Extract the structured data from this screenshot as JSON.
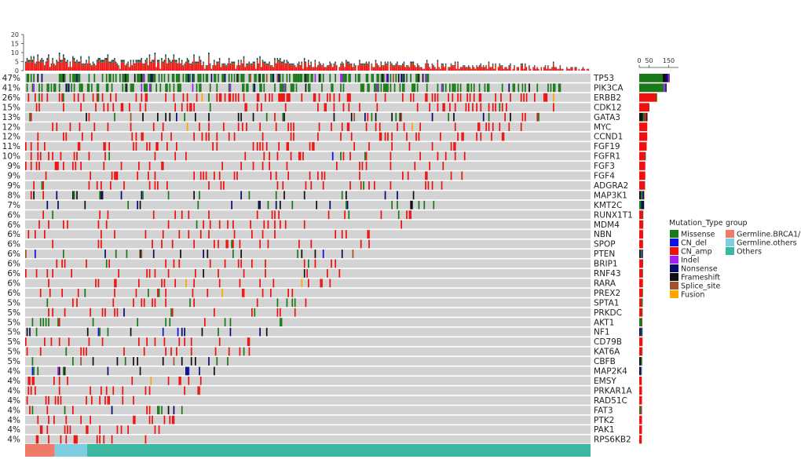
{
  "chart_data": {
    "type": "heatmap",
    "title": "",
    "top_axis_ticks": [
      0,
      5,
      10,
      15,
      20
    ],
    "right_axis_ticks": [
      0,
      50,
      150
    ],
    "right_axis_max": 200,
    "genes": [
      {
        "name": "TP53",
        "pct": "47%",
        "freq": 0.47,
        "counts": {
          "Missense": 120,
          "Frameshift": 14,
          "Nonsense": 12,
          "Indel": 6,
          "Splice_site": 4
        }
      },
      {
        "name": "PIK3CA",
        "pct": "41%",
        "freq": 0.41,
        "counts": {
          "Missense": 125,
          "Indel": 8,
          "Nonsense": 4,
          "Frameshift": 3
        }
      },
      {
        "name": "ERBB2",
        "pct": "26%",
        "freq": 0.26,
        "counts": {
          "CN_amp": 86,
          "Missense": 4,
          "Fusion": 2
        }
      },
      {
        "name": "CDK12",
        "pct": "15%",
        "freq": 0.15,
        "counts": {
          "CN_amp": 50,
          "Missense": 2
        }
      },
      {
        "name": "GATA3",
        "pct": "13%",
        "freq": 0.13,
        "counts": {
          "Frameshift": 18,
          "Missense": 10,
          "CN_amp": 8,
          "Nonsense": 4,
          "Splice_site": 3
        }
      },
      {
        "name": "MYC",
        "pct": "12%",
        "freq": 0.12,
        "counts": {
          "CN_amp": 40,
          "Fusion": 2
        }
      },
      {
        "name": "CCND1",
        "pct": "12%",
        "freq": 0.12,
        "counts": {
          "CN_amp": 41
        }
      },
      {
        "name": "FGF19",
        "pct": "11%",
        "freq": 0.11,
        "counts": {
          "CN_amp": 38
        }
      },
      {
        "name": "FGFR1",
        "pct": "10%",
        "freq": 0.1,
        "counts": {
          "CN_amp": 30,
          "Missense": 3,
          "CN_del": 1
        }
      },
      {
        "name": "FGF3",
        "pct": "9%",
        "freq": 0.09,
        "counts": {
          "CN_amp": 31
        }
      },
      {
        "name": "FGF4",
        "pct": "9%",
        "freq": 0.09,
        "counts": {
          "CN_amp": 31
        }
      },
      {
        "name": "ADGRA2",
        "pct": "9%",
        "freq": 0.09,
        "counts": {
          "CN_amp": 28,
          "Missense": 2
        }
      },
      {
        "name": "MAP3K1",
        "pct": "8%",
        "freq": 0.08,
        "counts": {
          "Frameshift": 9,
          "Missense": 8,
          "Nonsense": 7,
          "CN_amp": 2
        }
      },
      {
        "name": "KMT2C",
        "pct": "7%",
        "freq": 0.07,
        "counts": {
          "Missense": 10,
          "Nonsense": 8,
          "Frameshift": 7
        }
      },
      {
        "name": "RUNX1T1",
        "pct": "6%",
        "freq": 0.06,
        "counts": {
          "CN_amp": 18,
          "Missense": 3
        }
      },
      {
        "name": "MDM4",
        "pct": "6%",
        "freq": 0.06,
        "counts": {
          "CN_amp": 20,
          "Missense": 1
        }
      },
      {
        "name": "NBN",
        "pct": "6%",
        "freq": 0.06,
        "counts": {
          "CN_amp": 20
        }
      },
      {
        "name": "SPOP",
        "pct": "6%",
        "freq": 0.06,
        "counts": {
          "CN_amp": 19,
          "Missense": 1
        }
      },
      {
        "name": "PTEN",
        "pct": "6%",
        "freq": 0.06,
        "counts": {
          "Frameshift": 6,
          "Missense": 5,
          "Nonsense": 4,
          "Splice_site": 3,
          "CN_del": 2
        }
      },
      {
        "name": "BRIP1",
        "pct": "6%",
        "freq": 0.06,
        "counts": {
          "CN_amp": 18,
          "Missense": 2
        }
      },
      {
        "name": "RNF43",
        "pct": "6%",
        "freq": 0.06,
        "counts": {
          "CN_amp": 17,
          "Frameshift": 2
        }
      },
      {
        "name": "RARA",
        "pct": "6%",
        "freq": 0.06,
        "counts": {
          "CN_amp": 18,
          "Fusion": 2
        }
      },
      {
        "name": "PREX2",
        "pct": "6%",
        "freq": 0.06,
        "counts": {
          "CN_amp": 16,
          "Missense": 3,
          "Fusion": 1
        }
      },
      {
        "name": "SPTA1",
        "pct": "5%",
        "freq": 0.05,
        "counts": {
          "CN_amp": 12,
          "Missense": 6
        }
      },
      {
        "name": "PRKDC",
        "pct": "5%",
        "freq": 0.05,
        "counts": {
          "CN_amp": 14,
          "Missense": 2,
          "Nonsense": 1
        }
      },
      {
        "name": "AKT1",
        "pct": "5%",
        "freq": 0.05,
        "counts": {
          "Missense": 14,
          "CN_amp": 2
        }
      },
      {
        "name": "NF1",
        "pct": "5%",
        "freq": 0.05,
        "counts": {
          "Nonsense": 5,
          "Frameshift": 5,
          "Missense": 4,
          "CN_del": 3
        }
      },
      {
        "name": "CD79B",
        "pct": "5%",
        "freq": 0.05,
        "counts": {
          "CN_amp": 17
        }
      },
      {
        "name": "KAT6A",
        "pct": "5%",
        "freq": 0.05,
        "counts": {
          "CN_amp": 15,
          "Missense": 2
        }
      },
      {
        "name": "CBFB",
        "pct": "5%",
        "freq": 0.05,
        "counts": {
          "Frameshift": 8,
          "Missense": 5,
          "Splice_site": 2,
          "Nonsense": 1
        }
      },
      {
        "name": "MAP2K4",
        "pct": "4%",
        "freq": 0.04,
        "counts": {
          "Frameshift": 4,
          "Nonsense": 4,
          "Missense": 3,
          "CN_del": 2,
          "Indel": 1
        }
      },
      {
        "name": "EMSY",
        "pct": "4%",
        "freq": 0.04,
        "counts": {
          "CN_amp": 13,
          "Fusion": 1
        }
      },
      {
        "name": "PRKAR1A",
        "pct": "4%",
        "freq": 0.04,
        "counts": {
          "CN_amp": 14
        }
      },
      {
        "name": "RAD51C",
        "pct": "4%",
        "freq": 0.04,
        "counts": {
          "CN_amp": 14
        }
      },
      {
        "name": "FAT3",
        "pct": "4%",
        "freq": 0.04,
        "counts": {
          "Missense": 6,
          "CN_amp": 5,
          "Nonsense": 2,
          "Frameshift": 1
        }
      },
      {
        "name": "PTK2",
        "pct": "4%",
        "freq": 0.04,
        "counts": {
          "CN_amp": 14
        }
      },
      {
        "name": "PAK1",
        "pct": "4%",
        "freq": 0.04,
        "counts": {
          "CN_amp": 14
        }
      },
      {
        "name": "RPS6KB2",
        "pct": "4%",
        "freq": 0.04,
        "counts": {
          "CN_amp": 13
        }
      }
    ],
    "mutation_types": [
      {
        "name": "Missense",
        "color": "#1a7a1a"
      },
      {
        "name": "CN_del",
        "color": "#1010e0"
      },
      {
        "name": "CN_amp",
        "color": "#f01010"
      },
      {
        "name": "Indel",
        "color": "#a020f0"
      },
      {
        "name": "Nonsense",
        "color": "#0a0a6e"
      },
      {
        "name": "Frameshift",
        "color": "#111111"
      },
      {
        "name": "Splice_site",
        "color": "#a0522d"
      },
      {
        "name": "Fusion",
        "color": "#ffa500"
      }
    ],
    "groups": [
      {
        "name": "Germline.BRCA1/2",
        "color": "#f07a68",
        "samples": 22
      },
      {
        "name": "Germline.others",
        "color": "#7ecde0",
        "samples": 24
      },
      {
        "name": "Others",
        "color": "#3cb8a0",
        "samples": 374
      }
    ],
    "legend_titles": {
      "mutation": "Mutation_Type",
      "group": "group"
    },
    "n_samples": 420,
    "background_color": "#d3d3d3"
  }
}
